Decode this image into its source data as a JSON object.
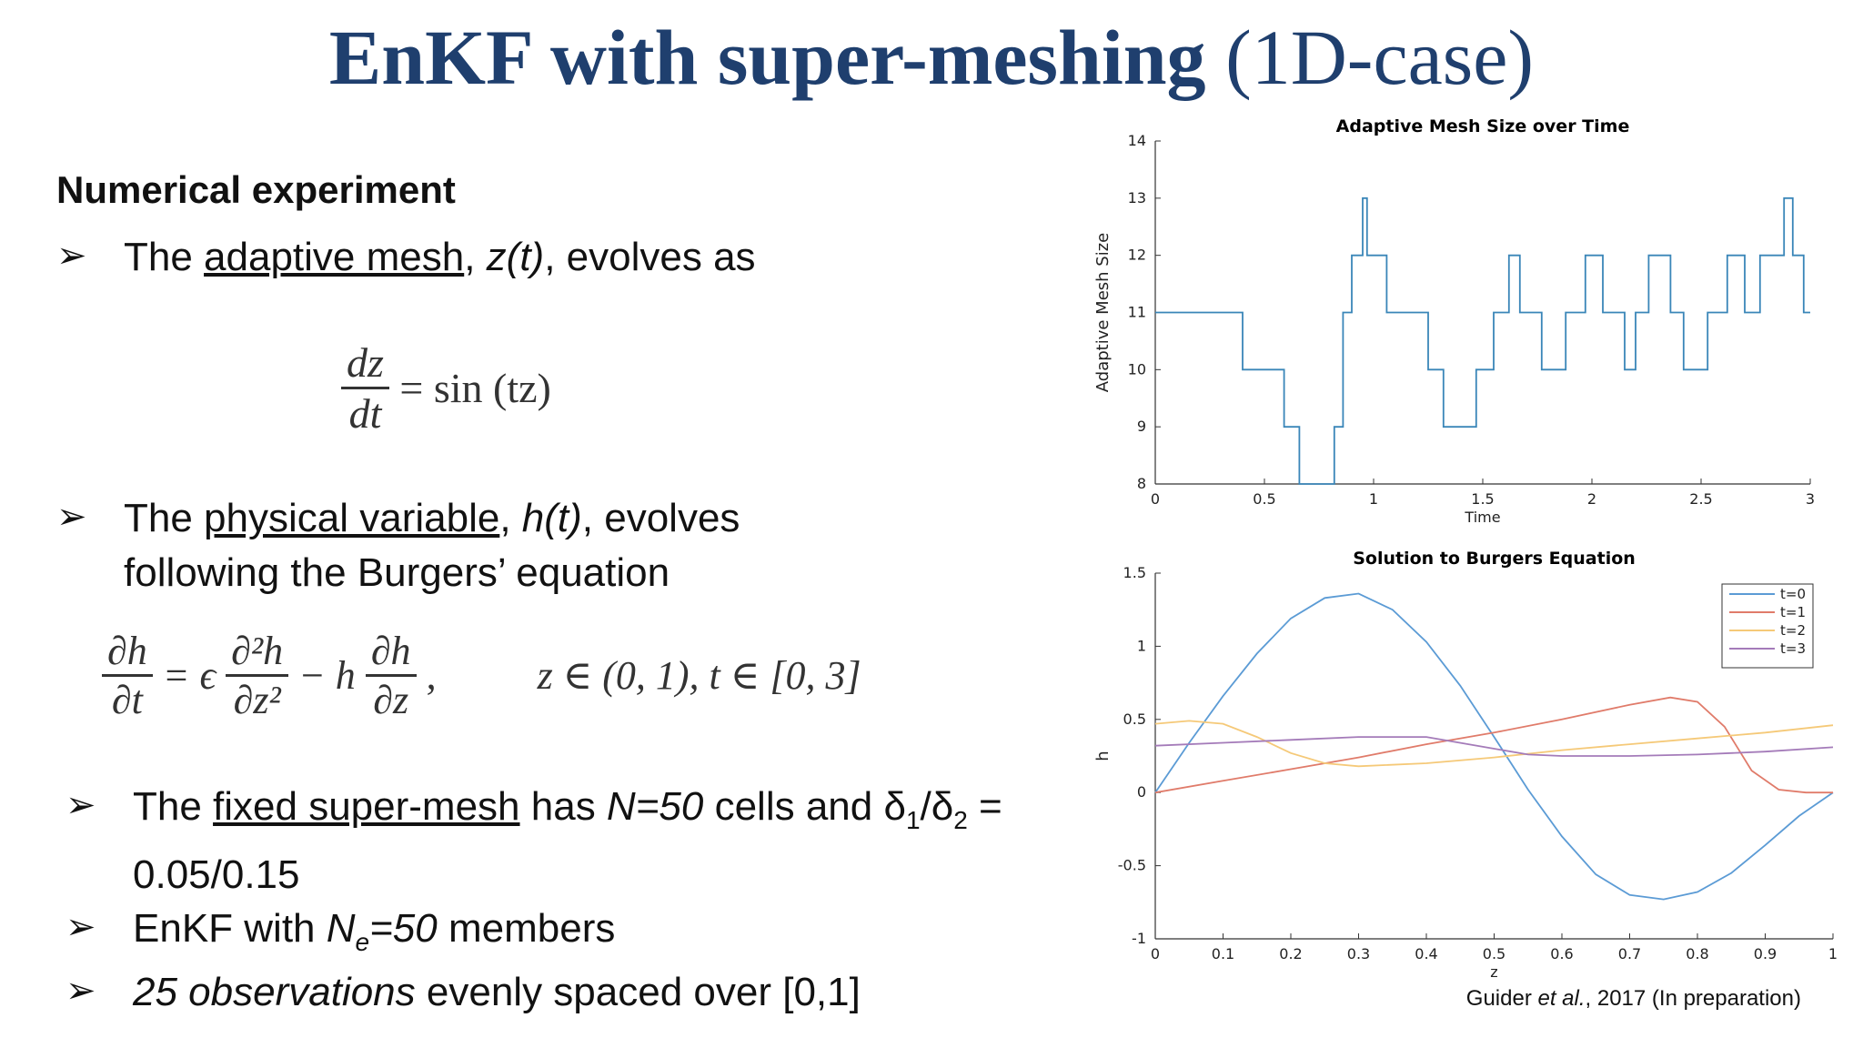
{
  "slide": {
    "title_bold": "EnKF with super-meshing",
    "title_rest": "(1D-case)",
    "heading": "Numerical experiment",
    "bullet1": {
      "pre": "The ",
      "u": "adaptive mesh",
      "mid": ", ",
      "var": "z(t)",
      "post": ", evolves as"
    },
    "eq1": {
      "num": "dz",
      "den": "dt",
      "rhs": "= sin (tz)"
    },
    "bullet2": {
      "pre": "The ",
      "u": "physical variable",
      "mid": ", ",
      "var": "h(t)",
      "post": ", evolves",
      "line2": "following the Burgers’ equation"
    },
    "eq2": {
      "lhs_num": "∂h",
      "lhs_den": "∂t",
      "eq_eps": "= ϵ",
      "mid_num": "∂²h",
      "mid_den": "∂z²",
      "minus_h": "− h",
      "rhs_num": "∂h",
      "rhs_den": "∂z",
      "comma": ",",
      "domain": "z ∈ (0, 1), t ∈ [0, 3]"
    },
    "bullet3": {
      "pre": "The ",
      "u": "fixed super-mesh",
      "mid": " has ",
      "n": "N=50",
      "post": " cells and δ",
      "sub1": "1",
      "slash": "/δ",
      "sub2": "2",
      "eq": " =",
      "line2": "0.05/0.15"
    },
    "bullet4": {
      "pre": "EnKF with ",
      "n": "N",
      "sub": "e",
      "val": "=50",
      "post": " members"
    },
    "bullet5": {
      "ital": "25 observations",
      "post": " evenly spaced over [0,1]"
    },
    "citation": {
      "author": "Guider ",
      "etal": "et al.",
      "post": ", 2017 (In preparation)"
    }
  },
  "chart_data": [
    {
      "type": "line",
      "title": "Adaptive Mesh Size over Time",
      "xlabel": "Time",
      "ylabel": "Adaptive Mesh Size",
      "xlim": [
        0,
        3
      ],
      "ylim": [
        8,
        14
      ],
      "xticks": [
        "0",
        "0.5",
        "1",
        "1.5",
        "2",
        "2.5",
        "3"
      ],
      "yticks": [
        "8",
        "9",
        "10",
        "11",
        "12",
        "13",
        "14"
      ],
      "color": "#3a86b8",
      "series": [
        {
          "step": true,
          "x": [
            0,
            0.4,
            0.4,
            0.59,
            0.59,
            0.66,
            0.66,
            0.82,
            0.82,
            0.86,
            0.86,
            0.9,
            0.9,
            0.95,
            0.95,
            0.97,
            0.97,
            1.06,
            1.06,
            1.25,
            1.25,
            1.32,
            1.32,
            1.47,
            1.47,
            1.55,
            1.55,
            1.62,
            1.62,
            1.67,
            1.67,
            1.77,
            1.77,
            1.88,
            1.88,
            1.97,
            1.97,
            2.05,
            2.05,
            2.15,
            2.15,
            2.2,
            2.2,
            2.26,
            2.26,
            2.36,
            2.36,
            2.42,
            2.42,
            2.53,
            2.53,
            2.62,
            2.62,
            2.7,
            2.7,
            2.77,
            2.77,
            2.88,
            2.88,
            2.92,
            2.92,
            2.97,
            2.97,
            3.0
          ],
          "y": [
            11,
            11,
            10,
            10,
            9,
            9,
            8,
            8,
            9,
            9,
            11,
            11,
            12,
            12,
            13,
            13,
            12,
            12,
            11,
            11,
            10,
            10,
            9,
            9,
            10,
            10,
            11,
            11,
            12,
            12,
            11,
            11,
            10,
            10,
            11,
            11,
            12,
            12,
            11,
            11,
            10,
            10,
            11,
            11,
            12,
            12,
            11,
            11,
            10,
            10,
            11,
            11,
            12,
            12,
            11,
            11,
            12,
            12,
            13,
            13,
            12,
            12,
            11,
            11
          ]
        }
      ]
    },
    {
      "type": "line",
      "title": "Solution to Burgers Equation",
      "xlabel": "z",
      "ylabel": "h",
      "xlim": [
        0,
        1
      ],
      "ylim": [
        -1,
        1.5
      ],
      "xticks": [
        "0",
        "0.1",
        "0.2",
        "0.3",
        "0.4",
        "0.5",
        "0.6",
        "0.7",
        "0.8",
        "0.9",
        "1"
      ],
      "yticks": [
        "-1",
        "-0.5",
        "0",
        "0.5",
        "1",
        "1.5"
      ],
      "legend": "top-right",
      "series": [
        {
          "name": "t=0",
          "color": "#5b9bd5",
          "x": [
            0,
            0.05,
            0.1,
            0.15,
            0.2,
            0.25,
            0.3,
            0.35,
            0.4,
            0.45,
            0.5,
            0.55,
            0.6,
            0.65,
            0.7,
            0.75,
            0.8,
            0.85,
            0.9,
            0.95,
            1.0
          ],
          "y": [
            0,
            0.34,
            0.66,
            0.95,
            1.19,
            1.33,
            1.36,
            1.25,
            1.03,
            0.73,
            0.38,
            0.02,
            -0.3,
            -0.56,
            -0.7,
            -0.73,
            -0.68,
            -0.55,
            -0.36,
            -0.16,
            0
          ]
        },
        {
          "name": "t=1",
          "color": "#e07b6a",
          "x": [
            0,
            0.1,
            0.2,
            0.3,
            0.4,
            0.5,
            0.6,
            0.7,
            0.76,
            0.8,
            0.84,
            0.88,
            0.92,
            0.96,
            1.0
          ],
          "y": [
            0,
            0.08,
            0.16,
            0.24,
            0.33,
            0.41,
            0.5,
            0.6,
            0.65,
            0.62,
            0.45,
            0.15,
            0.02,
            0.0,
            0.0
          ]
        },
        {
          "name": "t=2",
          "color": "#f5c978",
          "x": [
            0,
            0.05,
            0.1,
            0.15,
            0.2,
            0.25,
            0.3,
            0.4,
            0.5,
            0.6,
            0.7,
            0.8,
            0.9,
            1.0
          ],
          "y": [
            0.47,
            0.49,
            0.47,
            0.38,
            0.27,
            0.2,
            0.18,
            0.2,
            0.24,
            0.29,
            0.33,
            0.37,
            0.41,
            0.46
          ]
        },
        {
          "name": "t=3",
          "color": "#a47bb9",
          "x": [
            0,
            0.1,
            0.2,
            0.3,
            0.4,
            0.5,
            0.55,
            0.6,
            0.7,
            0.8,
            0.9,
            1.0
          ],
          "y": [
            0.32,
            0.34,
            0.36,
            0.38,
            0.38,
            0.3,
            0.26,
            0.25,
            0.25,
            0.26,
            0.28,
            0.31
          ]
        }
      ]
    }
  ]
}
